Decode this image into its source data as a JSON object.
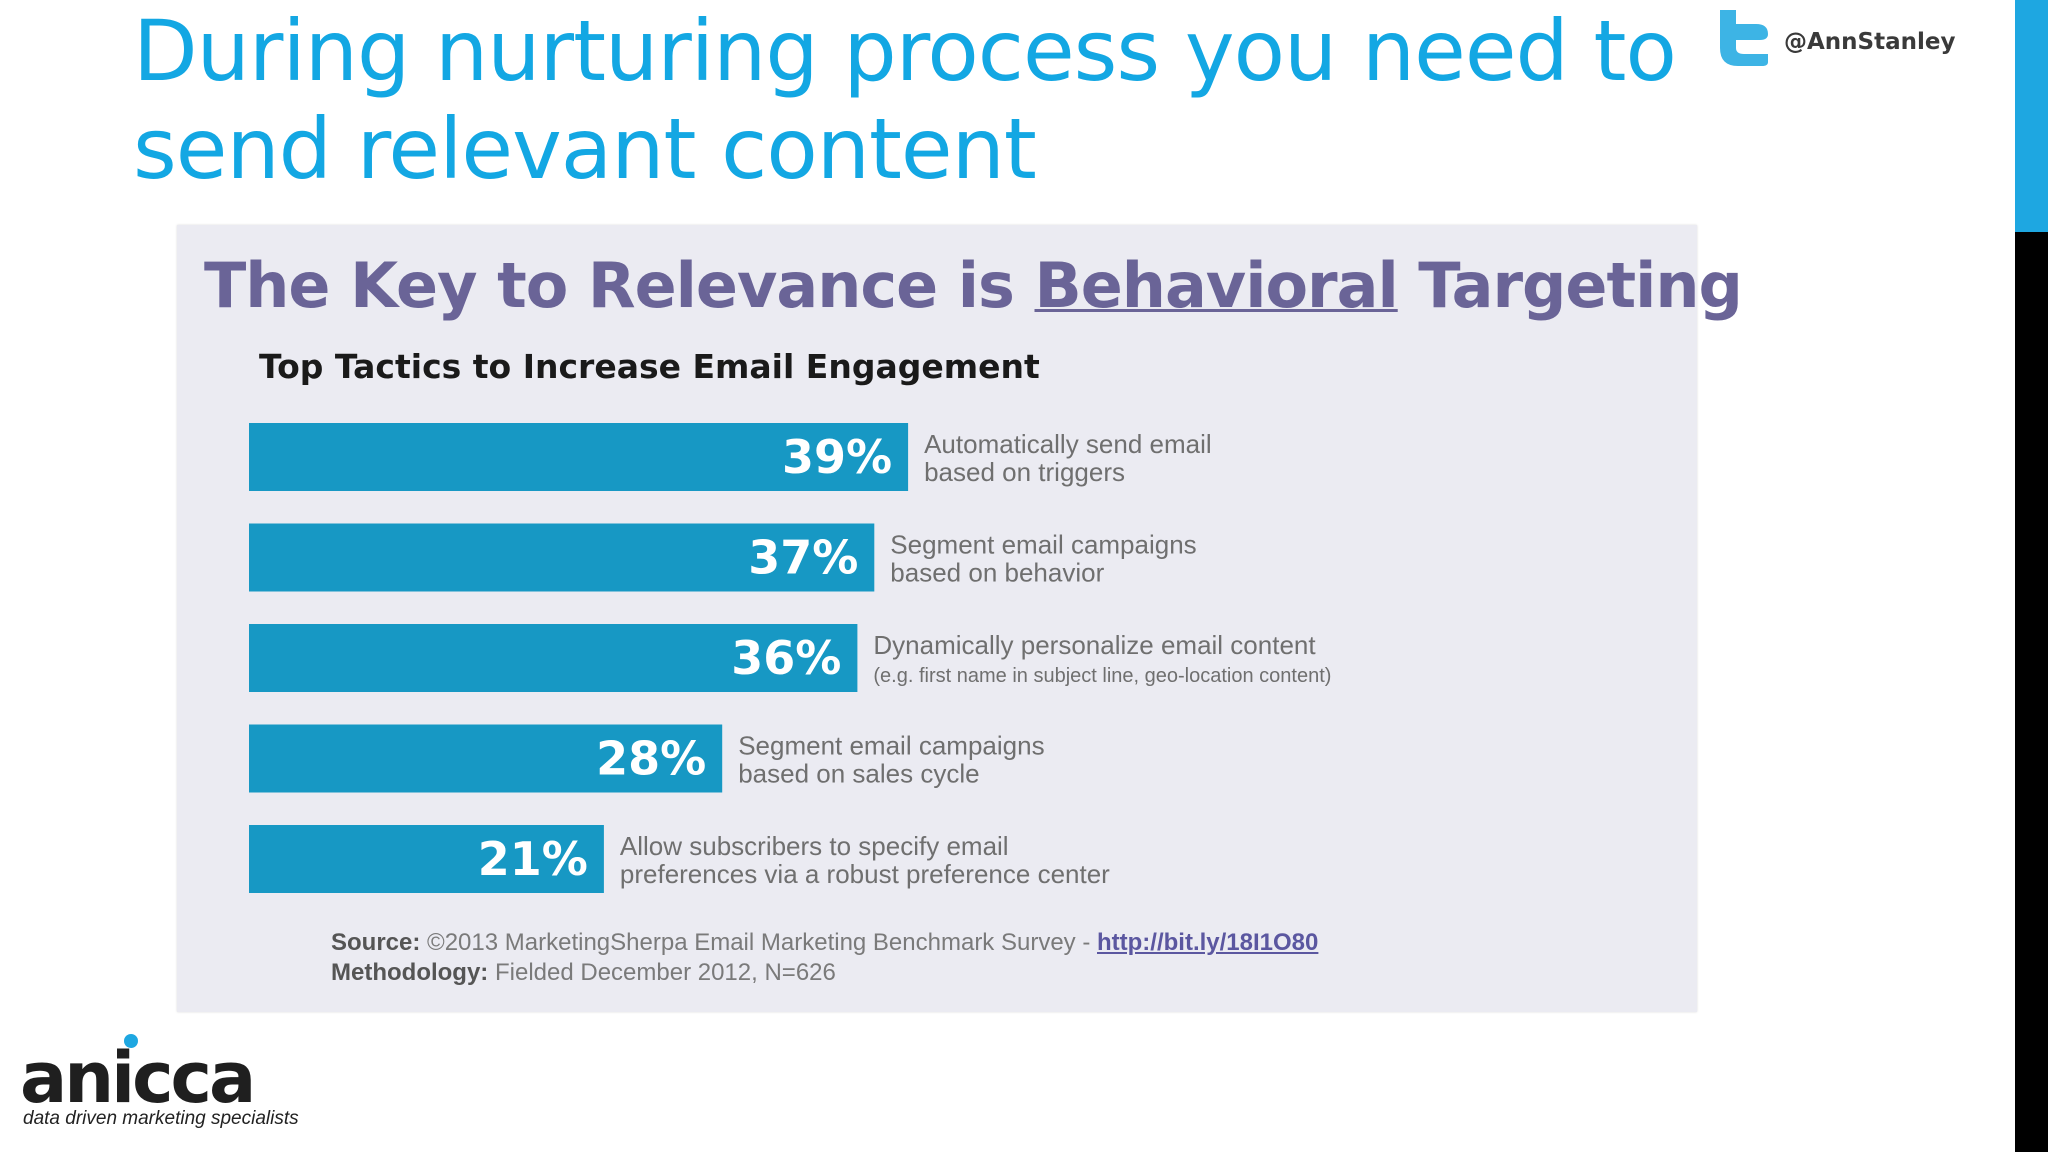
{
  "slide": {
    "title": "During nurturing process you need to send relevant content",
    "twitter_handle": "@AnnStanley",
    "accent_color": "#13a7e3"
  },
  "infographic": {
    "title_part1": "The Key to Relevance is ",
    "title_underlined": "Behavioral",
    "title_part2": " Targeting",
    "subtitle": "Top Tactics to Increase Email Engagement",
    "source_label": "Source:",
    "source_text": " ©2013 MarketingSherpa Email Marketing Benchmark Survey - ",
    "source_link": "http://bit.ly/18I1O80",
    "methodology_label": "Methodology:",
    "methodology_text": " Fielded December 2012, N=626"
  },
  "chart_data": {
    "type": "bar",
    "orientation": "horizontal",
    "title": "The Key to Relevance is Behavioral Targeting",
    "subtitle": "Top Tactics to Increase Email Engagement",
    "bar_color": "#1798c4",
    "categories": [
      {
        "lines": [
          "Automatically send email",
          "based on triggers"
        ],
        "note": ""
      },
      {
        "lines": [
          "Segment email campaigns",
          "based on behavior"
        ],
        "note": ""
      },
      {
        "lines": [
          "Dynamically personalize email content"
        ],
        "note": "(e.g. first name in subject line, geo-location content)"
      },
      {
        "lines": [
          "Segment email campaigns",
          "based on sales cycle"
        ],
        "note": ""
      },
      {
        "lines": [
          "Allow subscribers to specify email",
          "preferences via a robust preference center"
        ],
        "note": ""
      }
    ],
    "values": [
      39,
      37,
      36,
      28,
      21
    ],
    "value_labels": [
      "39%",
      "37%",
      "36%",
      "28%",
      "21%"
    ],
    "unit": "%"
  },
  "logo": {
    "name": "anicca",
    "tagline": "data driven marketing specialists",
    "dot_color": "#1ea7e1"
  }
}
